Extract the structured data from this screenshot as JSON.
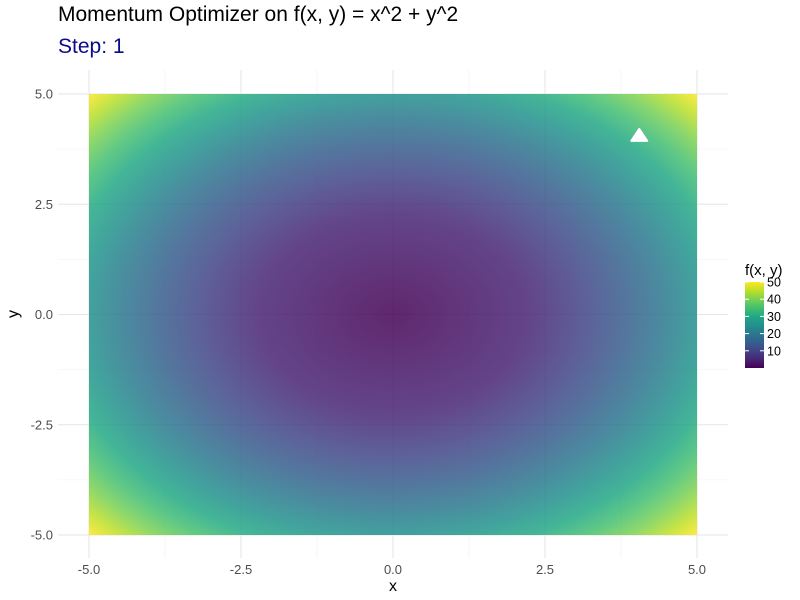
{
  "chart_data": {
    "type": "heatmap",
    "title": "Momentum Optimizer on f(x, y) = x^2 + y^2",
    "subtitle": "Step: 1",
    "subtitle_color": "#0b0b8a",
    "xlabel": "x",
    "ylabel": "y",
    "function": "x^2 + y^2",
    "xlim": [
      -5,
      5
    ],
    "ylim": [
      -5,
      5
    ],
    "x_ticks": [
      -5.0,
      -2.5,
      0.0,
      2.5,
      5.0
    ],
    "y_ticks": [
      -5.0,
      -2.5,
      0.0,
      2.5,
      5.0
    ],
    "x_tick_labels": [
      "-5.0",
      "-2.5",
      "0.0",
      "2.5",
      "5.0"
    ],
    "y_tick_labels": [
      "-5.0",
      "-2.5",
      "0.0",
      "2.5",
      "5.0"
    ],
    "grid": true,
    "colorscale": "viridis",
    "legend": {
      "title": "f(x, y)",
      "position": "right",
      "breaks": [
        10,
        20,
        30,
        40,
        50
      ],
      "labels": [
        "10",
        "20",
        "30",
        "40",
        "50"
      ],
      "range": [
        0,
        50
      ]
    },
    "marker": {
      "shape": "triangle",
      "color": "#ffffff",
      "x": 4.05,
      "y": 4.05
    }
  }
}
